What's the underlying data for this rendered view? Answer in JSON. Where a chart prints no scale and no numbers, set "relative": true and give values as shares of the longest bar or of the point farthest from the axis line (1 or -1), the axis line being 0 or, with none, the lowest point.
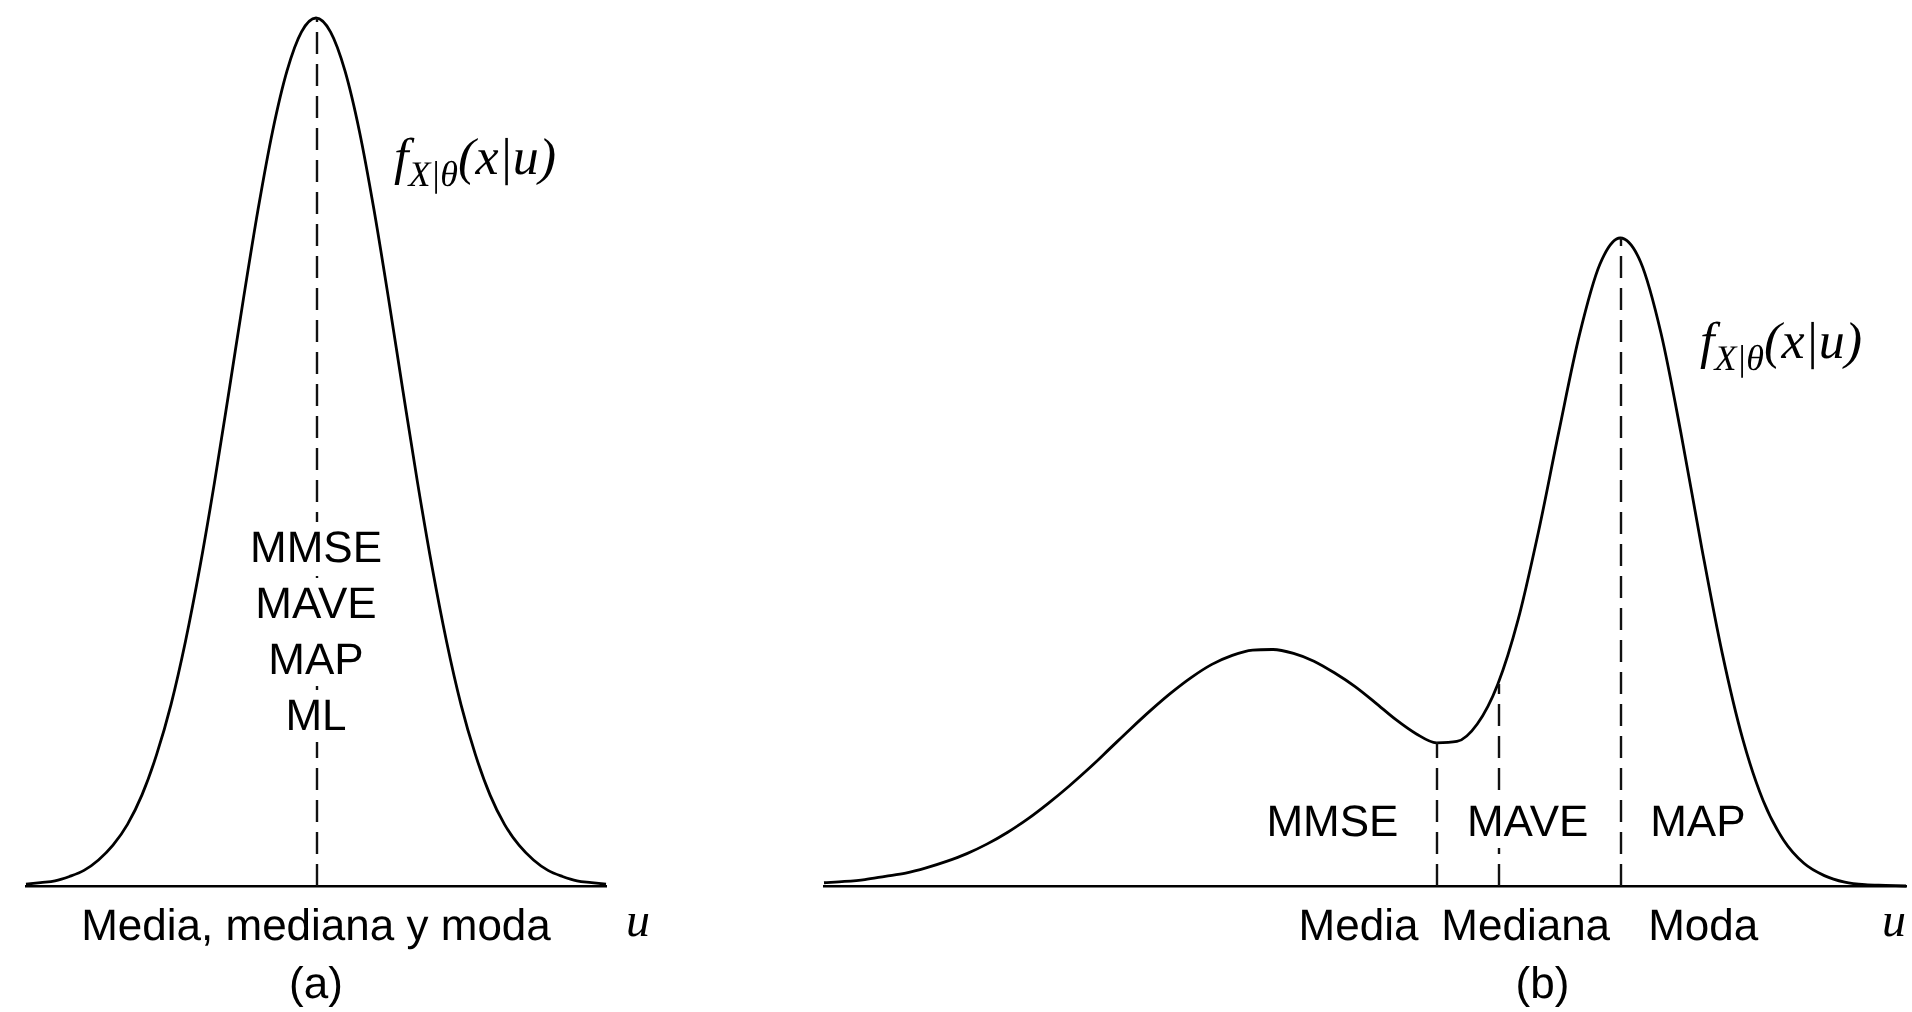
{
  "chart_data": [
    {
      "type": "line",
      "title": "(a)",
      "xlabel": "u",
      "relative": true,
      "tick_labels": false,
      "marker": "none",
      "categories": [
        null,
        null,
        null,
        null,
        null,
        null,
        null,
        null,
        null,
        null,
        null,
        null,
        null,
        null,
        null,
        null,
        null,
        null,
        null,
        null,
        null,
        null,
        null,
        null,
        null,
        null,
        null,
        null,
        null,
        null,
        null,
        null,
        null,
        null,
        null,
        null,
        null,
        null,
        null,
        null,
        null
      ],
      "series": [
        {
          "name": "f$_{X|θ}$(x|u)",
          "color": "#000000",
          "values": [
            0.002,
            0.004,
            0.006,
            0.011,
            0.018,
            0.03,
            0.047,
            0.071,
            0.105,
            0.151,
            0.209,
            0.282,
            0.368,
            0.465,
            0.57,
            0.677,
            0.779,
            0.869,
            0.939,
            0.984,
            1,
            0.984,
            0.939,
            0.869,
            0.779,
            0.677,
            0.57,
            0.465,
            0.368,
            0.282,
            0.209,
            0.151,
            0.105,
            0.071,
            0.047,
            0.03,
            0.018,
            0.011,
            0.006,
            0.004,
            0.002
          ]
        }
      ],
      "annotations": [
        "MMSE",
        "MAVE",
        "MAP",
        "ML",
        "Media, mediana y moda"
      ]
    },
    {
      "type": "line",
      "title": "(b)",
      "xlabel": "u",
      "relative": true,
      "tick_labels": false,
      "marker": "none",
      "categories": [
        null,
        null,
        null,
        null,
        null,
        null,
        null,
        null,
        null,
        null,
        null,
        null,
        null,
        null,
        null,
        null,
        null,
        null,
        null,
        null,
        null,
        null,
        null,
        null,
        null,
        null,
        null,
        null,
        null,
        null,
        null,
        null,
        null,
        null,
        null,
        null,
        null,
        null,
        null,
        null,
        null,
        null,
        null,
        null,
        null,
        null,
        null,
        null,
        null,
        null,
        null,
        null,
        null,
        null
      ],
      "series": [
        {
          "name": "f$_{X|θ}$(x|u)",
          "color": "#000000",
          "values": [
            0.005,
            0.007,
            0.01,
            0.015,
            0.02,
            0.028,
            0.038,
            0.05,
            0.065,
            0.083,
            0.104,
            0.128,
            0.154,
            0.182,
            0.212,
            0.242,
            0.271,
            0.298,
            0.322,
            0.342,
            0.356,
            0.364,
            0.365,
            0.359,
            0.347,
            0.329,
            0.308,
            0.283,
            0.257,
            0.235,
            0.221,
            0.223,
            0.25,
            0.311,
            0.411,
            0.547,
            0.702,
            0.85,
            0.959,
            1,
            0.963,
            0.853,
            0.695,
            0.521,
            0.359,
            0.227,
            0.132,
            0.071,
            0.035,
            0.016,
            0.006,
            0.002,
            0.001,
            0
          ]
        }
      ],
      "annotations": [
        "MMSE",
        "MAVE",
        "MAP",
        "Media",
        "Mediana",
        "Moda"
      ]
    }
  ]
}
